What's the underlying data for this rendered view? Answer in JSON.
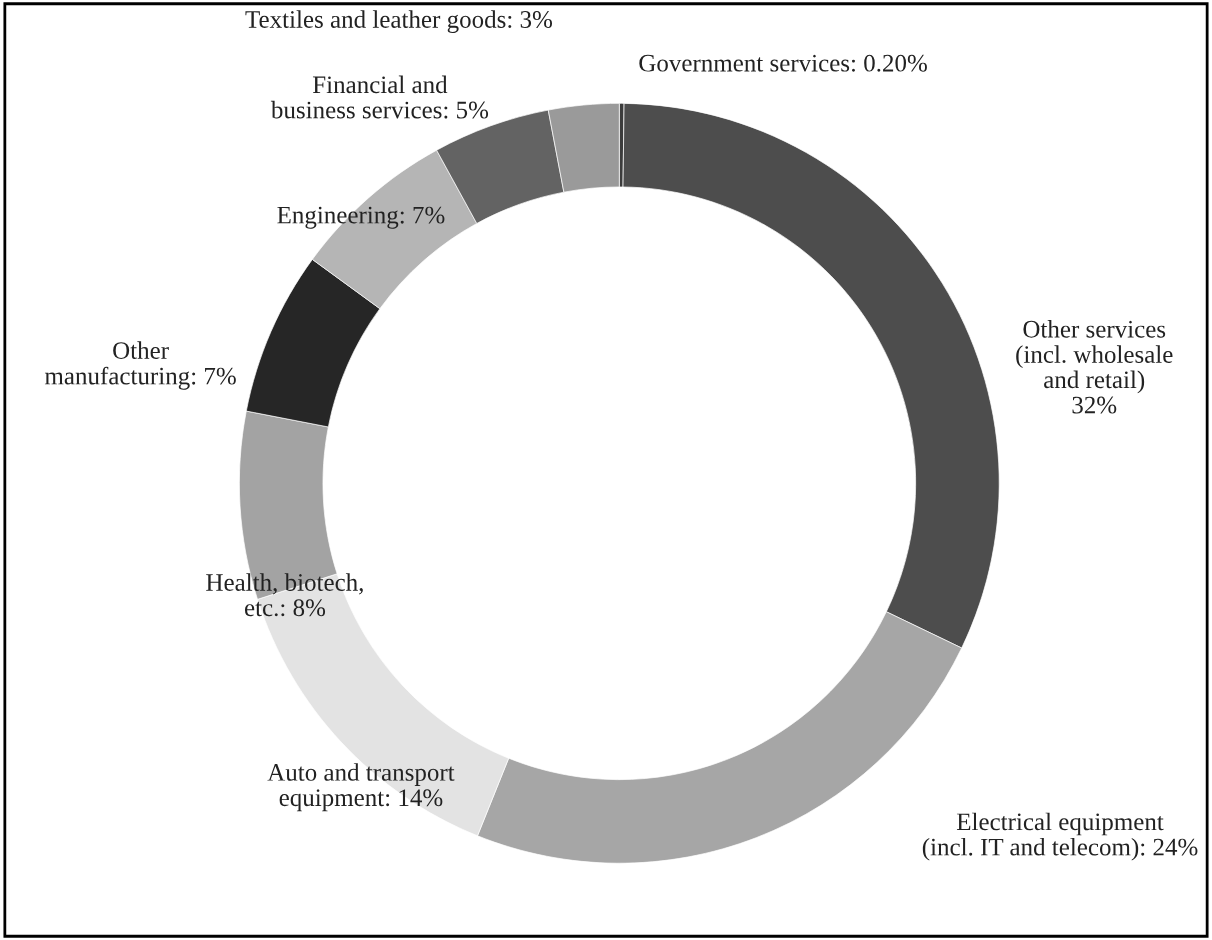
{
  "chart_data": {
    "type": "donut",
    "categories": [
      "Government services",
      "Other services\n(incl. wholesale\nand retail)",
      "Electrical equipment\n(incl. IT and telecom)",
      "Auto and transport\nequipment",
      "Health, biotech,\netc.",
      "Other\nmanufacturing",
      "Engineering",
      "Financial and\nbusiness services",
      "Textiles and leather goods"
    ],
    "values": [
      0.2,
      32,
      24,
      14,
      8,
      7,
      7,
      5,
      3
    ],
    "value_labels": [
      "0.20%",
      "32%",
      "24%",
      "14%",
      "8%",
      "7%",
      "7%",
      "5%",
      "3%"
    ],
    "colors": [
      "#3c3c3c",
      "#4d4d4d",
      "#a6a6a6",
      "#e3e3e3",
      "#a3a3a3",
      "#262626",
      "#b5b5b5",
      "#636363",
      "#9a9a9a"
    ],
    "legend": false
  }
}
